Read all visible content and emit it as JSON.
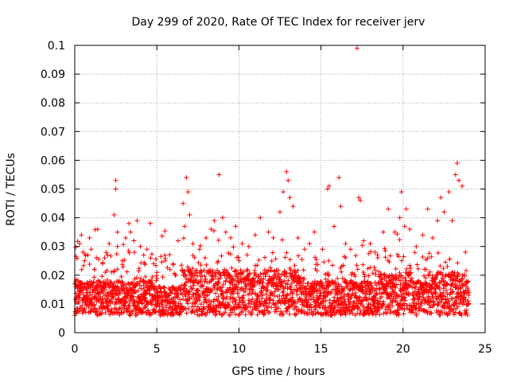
{
  "chart_data": {
    "type": "scatter",
    "title": "Day 299 of 2020, Rate Of TEC Index for receiver jerv",
    "xlabel": "GPS time / hours",
    "ylabel": "ROTI / TECUs",
    "xlim": [
      0,
      25
    ],
    "ylim": [
      0,
      0.1
    ],
    "xticks": [
      0,
      5,
      10,
      15,
      20,
      25
    ],
    "xtick_labels": [
      "0",
      "5",
      "10",
      "15",
      "20",
      "25"
    ],
    "yticks": [
      0,
      0.01,
      0.02,
      0.03,
      0.04,
      0.05,
      0.06,
      0.07,
      0.08,
      0.09,
      0.1
    ],
    "ytick_labels": [
      "0",
      "0.01",
      "0.02",
      "0.03",
      "0.04",
      "0.05",
      "0.06",
      "0.07",
      "0.08",
      "0.09",
      "0.1"
    ],
    "grid": true,
    "marker": "+",
    "color": "#ff0000",
    "series": [
      {
        "name": "ROTI",
        "note": "dense cloud of points every ~30 s from 0 to 24 h, mostly 0.005-0.02 with spikes; representative points listed",
        "points": [
          [
            0.2,
            0.018
          ],
          [
            0.3,
            0.031
          ],
          [
            0.4,
            0.034
          ],
          [
            0.5,
            0.028
          ],
          [
            0.6,
            0.025
          ],
          [
            0.8,
            0.027
          ],
          [
            0.9,
            0.033
          ],
          [
            1.0,
            0.029
          ],
          [
            1.2,
            0.022
          ],
          [
            1.4,
            0.036
          ],
          [
            1.7,
            0.024
          ],
          [
            2.0,
            0.027
          ],
          [
            2.1,
            0.031
          ],
          [
            2.4,
            0.041
          ],
          [
            2.5,
            0.053
          ],
          [
            2.5,
            0.05
          ],
          [
            2.6,
            0.03
          ],
          [
            2.9,
            0.025
          ],
          [
            3.1,
            0.033
          ],
          [
            3.3,
            0.038
          ],
          [
            3.4,
            0.035
          ],
          [
            3.6,
            0.032
          ],
          [
            3.8,
            0.039
          ],
          [
            4.0,
            0.03
          ],
          [
            4.2,
            0.027
          ],
          [
            4.4,
            0.029
          ],
          [
            4.6,
            0.038
          ],
          [
            4.8,
            0.024
          ],
          [
            5.0,
            0.021
          ],
          [
            5.5,
            0.025
          ],
          [
            5.8,
            0.022
          ],
          [
            6.0,
            0.024
          ],
          [
            6.3,
            0.032
          ],
          [
            6.6,
            0.045
          ],
          [
            6.7,
            0.037
          ],
          [
            6.8,
            0.054
          ],
          [
            6.9,
            0.049
          ],
          [
            7.0,
            0.041
          ],
          [
            7.2,
            0.031
          ],
          [
            7.6,
            0.029
          ],
          [
            8.0,
            0.033
          ],
          [
            8.3,
            0.036
          ],
          [
            8.5,
            0.039
          ],
          [
            8.8,
            0.055
          ],
          [
            9.0,
            0.04
          ],
          [
            9.2,
            0.035
          ],
          [
            9.5,
            0.033
          ],
          [
            9.8,
            0.037
          ],
          [
            10.2,
            0.031
          ],
          [
            10.6,
            0.03
          ],
          [
            11.0,
            0.034
          ],
          [
            11.3,
            0.04
          ],
          [
            11.8,
            0.035
          ],
          [
            12.1,
            0.033
          ],
          [
            12.5,
            0.042
          ],
          [
            12.7,
            0.049
          ],
          [
            12.9,
            0.056
          ],
          [
            13.0,
            0.053
          ],
          [
            13.1,
            0.047
          ],
          [
            13.3,
            0.044
          ],
          [
            13.6,
            0.033
          ],
          [
            14.0,
            0.029
          ],
          [
            14.3,
            0.031
          ],
          [
            14.6,
            0.035
          ],
          [
            15.1,
            0.029
          ],
          [
            15.4,
            0.05
          ],
          [
            15.5,
            0.051
          ],
          [
            15.8,
            0.037
          ],
          [
            16.1,
            0.054
          ],
          [
            16.2,
            0.044
          ],
          [
            16.5,
            0.031
          ],
          [
            16.8,
            0.029
          ],
          [
            17.2,
            0.099
          ],
          [
            17.3,
            0.047
          ],
          [
            17.4,
            0.046
          ],
          [
            17.6,
            0.032
          ],
          [
            18.0,
            0.031
          ],
          [
            18.3,
            0.028
          ],
          [
            18.8,
            0.035
          ],
          [
            19.1,
            0.043
          ],
          [
            19.5,
            0.035
          ],
          [
            19.8,
            0.04
          ],
          [
            19.9,
            0.049
          ],
          [
            20.1,
            0.037
          ],
          [
            20.2,
            0.043
          ],
          [
            20.4,
            0.036
          ],
          [
            20.8,
            0.03
          ],
          [
            21.2,
            0.034
          ],
          [
            21.5,
            0.043
          ],
          [
            21.8,
            0.033
          ],
          [
            22.1,
            0.039
          ],
          [
            22.3,
            0.047
          ],
          [
            22.5,
            0.042
          ],
          [
            22.8,
            0.049
          ],
          [
            23.0,
            0.039
          ],
          [
            23.2,
            0.055
          ],
          [
            23.3,
            0.059
          ],
          [
            23.4,
            0.053
          ],
          [
            23.6,
            0.051
          ],
          [
            23.8,
            0.028
          ]
        ]
      }
    ]
  }
}
